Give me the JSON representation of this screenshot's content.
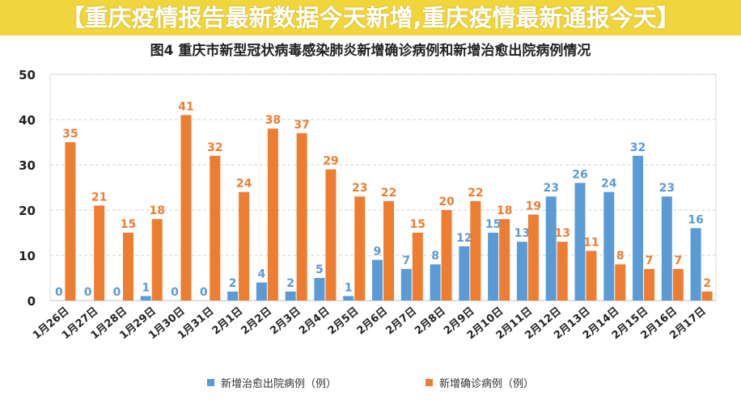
{
  "banner": {
    "text": "【重庆疫情报告最新数据今天新增,重庆疫情最新通报今天】"
  },
  "chart_data": {
    "type": "bar",
    "title": "图4   重庆市新型冠状病毒感染肺炎新增确诊病例和新增治愈出院病例情况",
    "categories": [
      "1月26日",
      "1月27日",
      "1月28日",
      "1月29日",
      "1月30日",
      "1月31日",
      "2月1日",
      "2月2日",
      "2月3日",
      "2月4日",
      "2月5日",
      "2月6日",
      "2月7日",
      "2月8日",
      "2月9日",
      "2月10日",
      "2月11日",
      "2月12日",
      "2月13日",
      "2月14日",
      "2月15日",
      "2月16日",
      "2月17日"
    ],
    "series": [
      {
        "name": "新增治愈出院病例（例）",
        "color": "#5b9bd5",
        "values": [
          0,
          0,
          0,
          1,
          0,
          0,
          2,
          4,
          2,
          5,
          1,
          9,
          7,
          8,
          12,
          15,
          13,
          23,
          26,
          24,
          32,
          23,
          16
        ]
      },
      {
        "name": "新增确诊病例（例）",
        "color": "#ed7d31",
        "values": [
          35,
          21,
          15,
          18,
          41,
          32,
          24,
          38,
          37,
          29,
          23,
          22,
          15,
          20,
          22,
          18,
          19,
          13,
          11,
          8,
          7,
          7,
          2
        ]
      }
    ],
    "ylim": [
      0,
      50
    ],
    "yticks": [
      "0",
      "10",
      "20",
      "30",
      "40",
      "50"
    ],
    "grid": true,
    "legend": "bottom"
  }
}
